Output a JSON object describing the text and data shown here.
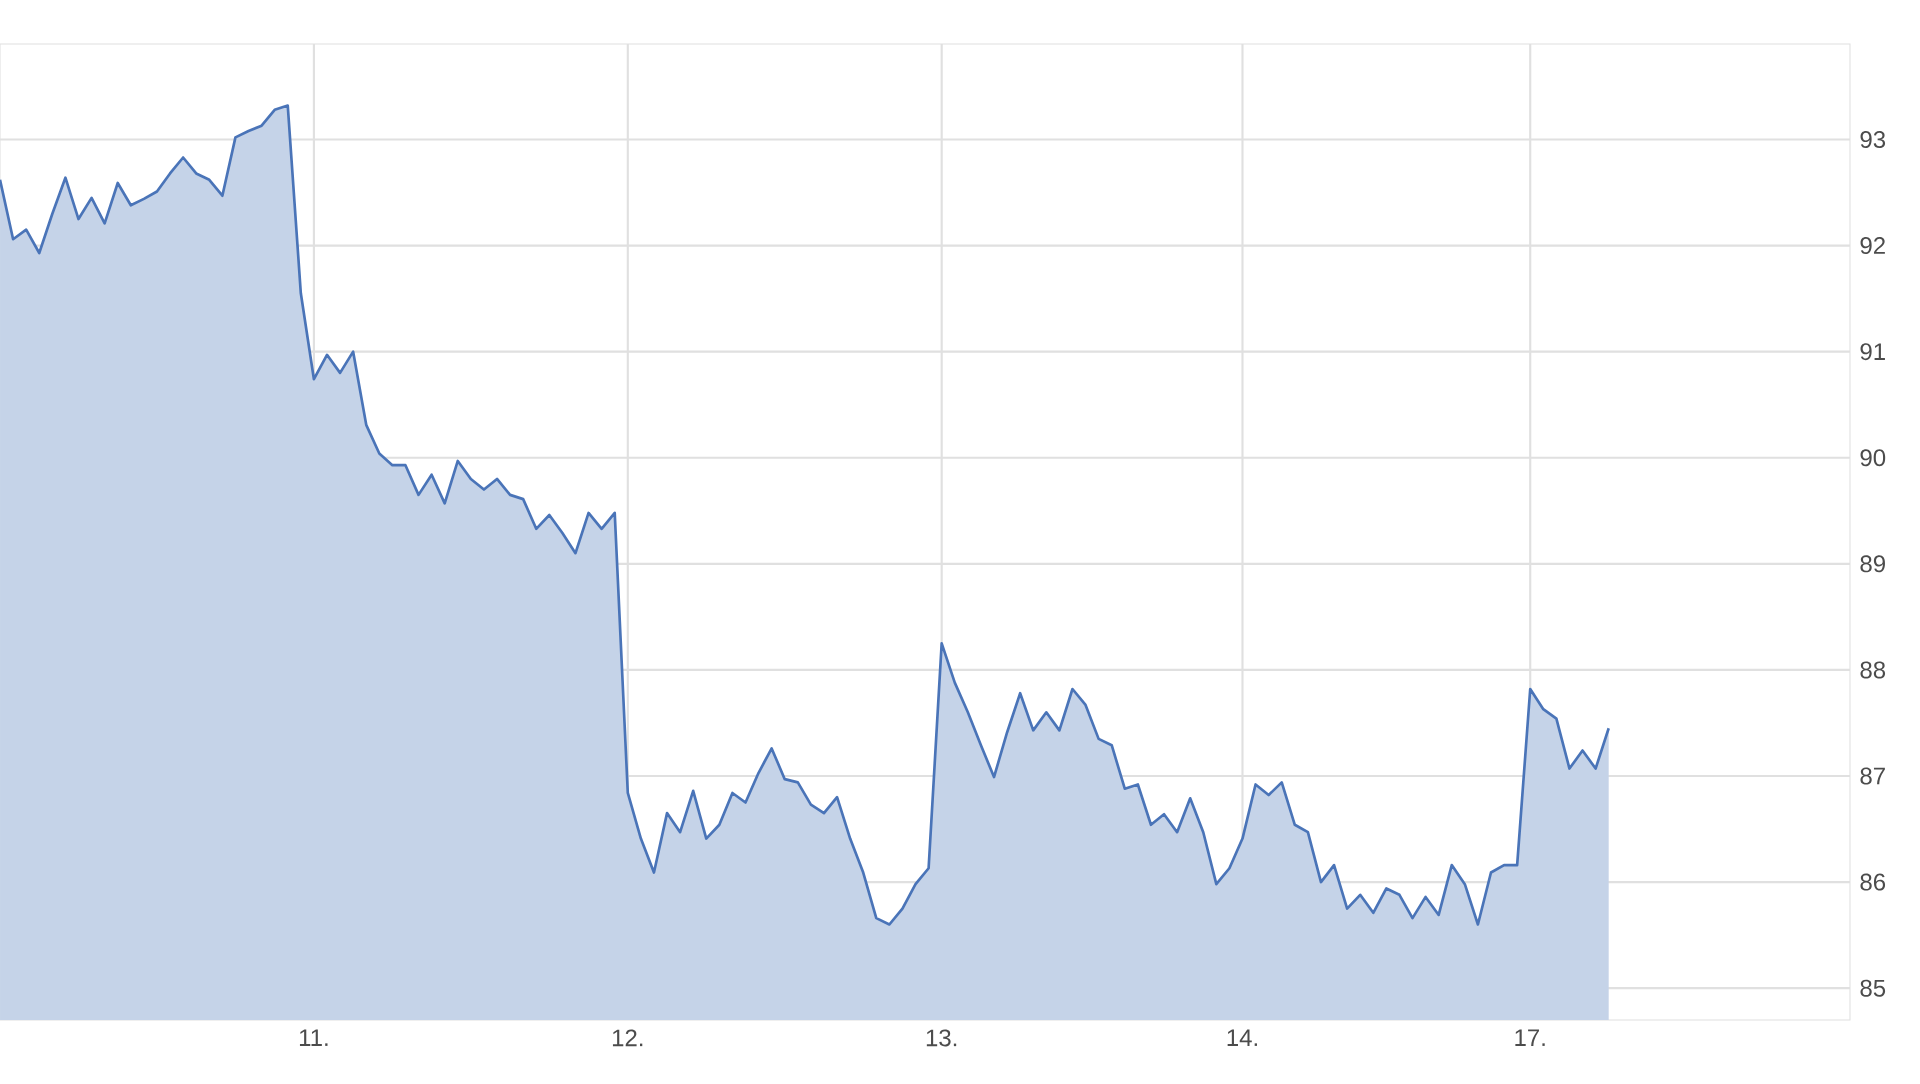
{
  "chart_data": {
    "type": "area",
    "ylim": [
      84.7,
      93.9
    ],
    "categories": [
      null,
      null,
      null,
      null,
      null,
      null,
      null,
      null,
      null,
      null,
      null,
      null,
      null,
      null,
      null,
      null,
      null,
      null,
      null,
      null,
      null,
      null,
      null,
      null,
      "11.",
      null,
      null,
      null,
      null,
      null,
      null,
      null,
      null,
      null,
      null,
      null,
      null,
      null,
      null,
      null,
      null,
      null,
      null,
      null,
      null,
      null,
      null,
      null,
      "12.",
      null,
      null,
      null,
      null,
      null,
      null,
      null,
      null,
      null,
      null,
      null,
      null,
      null,
      null,
      null,
      null,
      null,
      null,
      null,
      null,
      null,
      null,
      null,
      "13.",
      null,
      null,
      null,
      null,
      null,
      null,
      null,
      null,
      null,
      null,
      null,
      null,
      null,
      null,
      null,
      null,
      null,
      null,
      null,
      null,
      null,
      null,
      "14.",
      null,
      null,
      null,
      null,
      null,
      null,
      null,
      null,
      null,
      null,
      null,
      null,
      null,
      null,
      null,
      null,
      null,
      null,
      null,
      null,
      null,
      "17.",
      null,
      null,
      null,
      null,
      null,
      null
    ],
    "yticks": [
      85,
      86,
      87,
      88,
      89,
      90,
      91,
      92,
      93
    ],
    "grid": true,
    "series": [
      {
        "color": "#4a74b8",
        "values": [
          92.62,
          92.06,
          92.15,
          91.93,
          92.3,
          92.64,
          92.25,
          92.45,
          92.21,
          92.59,
          92.38,
          92.44,
          92.51,
          92.68,
          92.83,
          92.68,
          92.62,
          92.47,
          93.02,
          93.08,
          93.13,
          93.28,
          93.32,
          91.55,
          90.74,
          90.97,
          90.8,
          91.0,
          90.31,
          90.04,
          89.93,
          89.93,
          89.65,
          89.84,
          89.57,
          89.97,
          89.8,
          89.7,
          89.8,
          89.65,
          89.61,
          89.33,
          89.46,
          89.29,
          89.1,
          89.48,
          89.33,
          89.48,
          86.84,
          86.41,
          86.09,
          86.65,
          86.47,
          86.86,
          86.41,
          86.54,
          86.84,
          86.75,
          87.03,
          87.26,
          86.97,
          86.94,
          86.73,
          86.65,
          86.8,
          86.41,
          86.09,
          85.66,
          85.6,
          85.75,
          85.98,
          86.13,
          88.25,
          87.88,
          87.6,
          87.29,
          86.99,
          87.41,
          87.78,
          87.43,
          87.6,
          87.43,
          87.82,
          87.67,
          87.35,
          87.29,
          86.88,
          86.92,
          86.54,
          86.64,
          86.47,
          86.79,
          86.47,
          85.98,
          86.13,
          86.41,
          86.92,
          86.82,
          86.94,
          86.54,
          86.47,
          86.0,
          86.16,
          85.75,
          85.88,
          85.71,
          85.94,
          85.88,
          85.66,
          85.86,
          85.69,
          86.16,
          85.98,
          85.6,
          86.09,
          86.16,
          86.16,
          87.82,
          87.63,
          87.54,
          87.07,
          87.24,
          87.07,
          87.45
        ]
      }
    ]
  }
}
